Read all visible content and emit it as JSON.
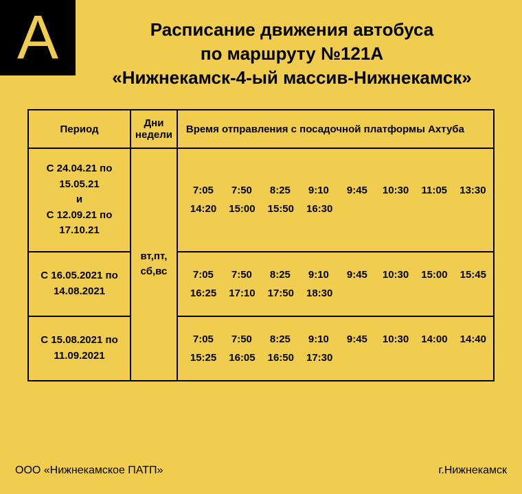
{
  "logo": {
    "letter": "А"
  },
  "header": {
    "line1": "Расписание движения автобуса",
    "line2": "по маршруту №121А",
    "line3": "«Нижнекамск-4-ый массив-Нижнекамск»"
  },
  "table": {
    "columns": {
      "period": "Период",
      "days": "Дни недели",
      "times": "Время отправления  с посадочной платформы  Ахтуба"
    },
    "days_cell": "вт,пт, сб,вс",
    "rows": [
      {
        "period_html": "С 24.04.21 по 15.05.21<br>и<br>С 12.09.21 по 17.10.21",
        "times_row1": [
          "7:05",
          "7:50",
          "8:25",
          "9:10",
          "9:45",
          "10:30",
          "11:05",
          "13:30"
        ],
        "times_row2": [
          "14:20",
          "15:00",
          "15:50",
          "16:30"
        ]
      },
      {
        "period_html": "С 16.05.2021 по 14.08.2021",
        "times_row1": [
          "7:05",
          "7:50",
          "8:25",
          "9:10",
          "9:45",
          "10:30",
          "15:00",
          "15:45"
        ],
        "times_row2": [
          "16:25",
          "17:10",
          "17:50",
          "18:30"
        ]
      },
      {
        "period_html": "С 15.08.2021 по 11.09.2021",
        "times_row1": [
          "7:05",
          "7:50",
          "8:25",
          "9:10",
          "9:45",
          "10:30",
          "14:00",
          "14:40"
        ],
        "times_row2": [
          "15:25",
          "16:05",
          "16:50",
          "17:30"
        ]
      }
    ]
  },
  "footer": {
    "left": "ООО «Нижнекамское ПАТП»",
    "right": "г.Нижнекамск"
  },
  "colors": {
    "background": "#f0cc4f",
    "logo_bg": "#000000",
    "text": "#000000",
    "border": "#000000"
  }
}
